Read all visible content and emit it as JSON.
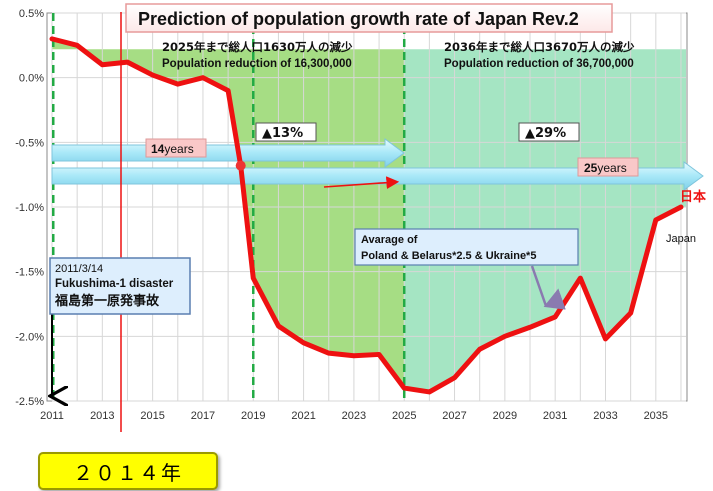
{
  "chart_data": {
    "type": "line",
    "title": "Prediction of population growth rate of Japan Rev.2",
    "x": [
      2011,
      2012,
      2013,
      2014,
      2015,
      2016,
      2017,
      2018,
      2018.5,
      2019,
      2020,
      2021,
      2022,
      2023,
      2024,
      2025,
      2026,
      2027,
      2028,
      2029,
      2030,
      2031,
      2032,
      2033,
      2034,
      2035,
      2036
    ],
    "series": [
      {
        "name": "日本",
        "name2": "Japan",
        "color": "#ee1111",
        "values": [
          0.3,
          0.25,
          0.1,
          0.12,
          0.02,
          -0.05,
          0.0,
          -0.1,
          -0.68,
          -1.55,
          -1.92,
          -2.05,
          -2.13,
          -2.15,
          -2.14,
          -2.4,
          -2.43,
          -2.32,
          -2.1,
          -2.0,
          -1.93,
          -1.85,
          -1.55,
          -2.02,
          -1.82,
          -1.1,
          -1.0
        ]
      }
    ],
    "xlim": [
      2011,
      2036.2
    ],
    "ylim": [
      -2.5,
      0.5
    ],
    "x_ticks": [
      "2011",
      "2013",
      "2015",
      "2017",
      "2019",
      "2021",
      "2023",
      "2025",
      "2027",
      "2029",
      "2031",
      "2033",
      "2035"
    ],
    "y_ticks": [
      "0.5%",
      "0.0%",
      "-0.5%",
      "-1.0%",
      "-1.5%",
      "-2.0%",
      "-2.5%"
    ],
    "grid": "vertical-and-horizontal",
    "fill_colors": {
      "era_1": "#a6dd84",
      "era_2": "#a5e5c3"
    },
    "annotations": {
      "era_2025_jp": "2025年まで総人口1630万人の減少",
      "era_2025_en": "Population reduction of 16,300,000",
      "era_2036_jp": "2036年まで総人口3670万人の減少",
      "era_2036_en": "Population reduction of 36,700,000",
      "pct_13": "▲13%",
      "pct_29": "▲29%",
      "years_14_num": "14",
      "years_14_unit": "years",
      "years_25_num": "25",
      "years_25_unit": "years",
      "fukushima_date": "2011/3/14",
      "fukushima_en": "Fukushima-1 disaster",
      "fukushima_jp": "福島第一原発事故",
      "avg_line1": "Avarage of",
      "avg_line2": "Poland & Belarus*2.5 & Ukraine*5",
      "year_badge": "２０１４年"
    }
  }
}
